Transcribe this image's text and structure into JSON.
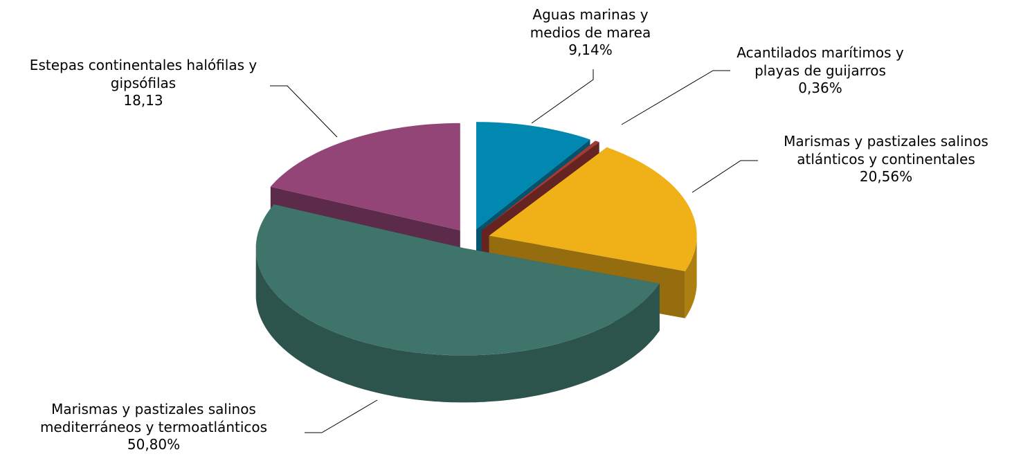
{
  "chart_data": {
    "type": "pie3d",
    "categories": [
      "Aguas marinas y\nmedios de marea",
      "Acantilados marítimos y\nplayas de guijarros",
      "Marismas y pastizales salinos\natlánticos y continentales",
      "Marismas y pastizales salinos\nmediterráneos y termoatlánticos",
      "Estepas continentales halófilas y\ngipsófilas"
    ],
    "values": [
      9.14,
      0.36,
      20.56,
      50.8,
      18.13
    ],
    "value_labels": [
      "9,14%",
      "0,36%",
      "20,56%",
      "50,80%",
      "18,13"
    ],
    "colors": [
      "#0088b0",
      "#a33a35",
      "#f0b018",
      "#3e746a",
      "#944577"
    ]
  }
}
